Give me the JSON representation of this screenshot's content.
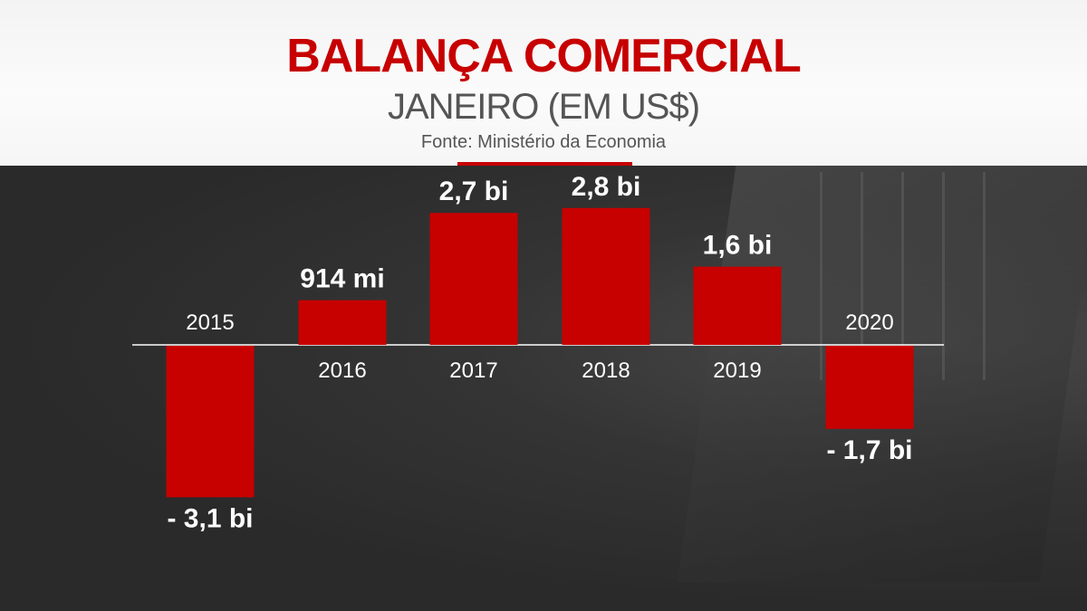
{
  "header": {
    "title": "BALANÇA COMERCIAL",
    "subtitle": "JANEIRO (EM US$)",
    "source": "Fonte: Ministério da Economia"
  },
  "colors": {
    "bar": "#c70000",
    "title": "#c70000",
    "baseline": "#ffffff",
    "text": "#ffffff"
  },
  "chart_data": {
    "type": "bar",
    "title": "BALANÇA COMERCIAL",
    "subtitle": "JANEIRO (EM US$)",
    "categories": [
      "2015",
      "2016",
      "2017",
      "2018",
      "2019",
      "2020"
    ],
    "values": [
      -3.1,
      0.914,
      2.7,
      2.8,
      1.6,
      -1.7
    ],
    "value_labels": [
      "- 3,1 bi",
      "914 mi",
      "2,7 bi",
      "2,8 bi",
      "1,6 bi",
      "- 1,7 bi"
    ],
    "unit": "US$ bi",
    "ylim": [
      -3.1,
      2.8
    ],
    "grid": false,
    "legend": "none"
  }
}
